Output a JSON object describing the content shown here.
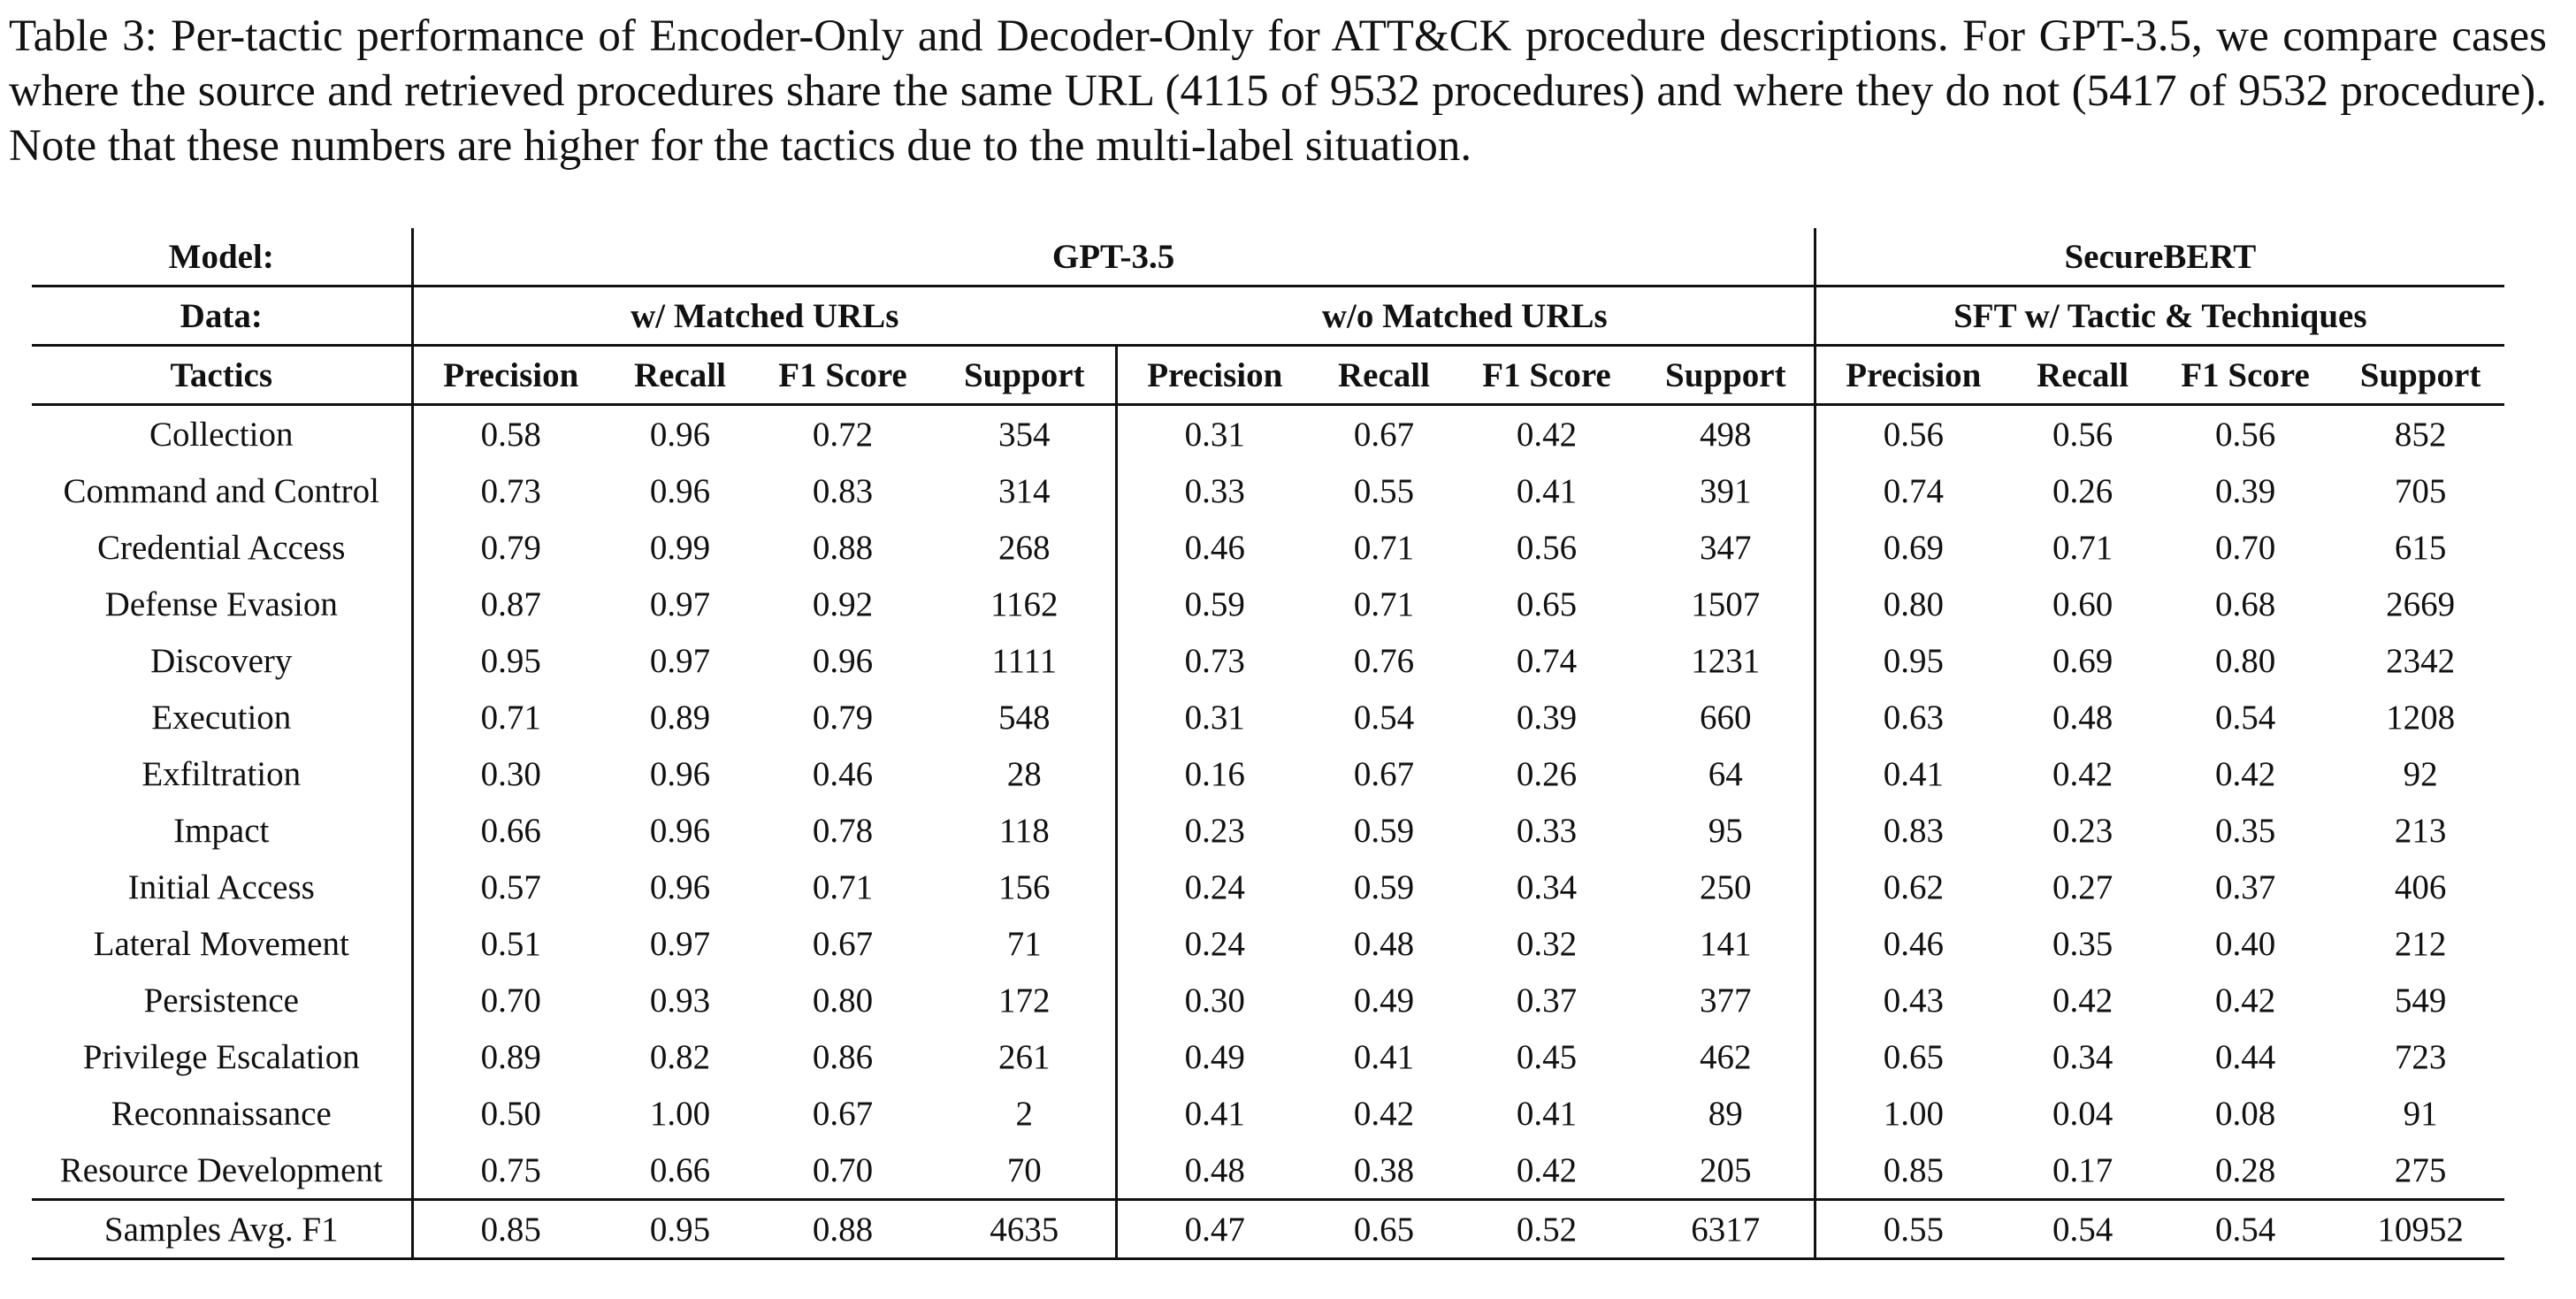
{
  "caption": "Table 3: Per-tactic performance of Encoder-Only and Decoder-Only for ATT&CK procedure descriptions. For GPT-3.5, we compare cases where the source and retrieved procedures share the same URL (4115 of 9532 procedures) and where they do not (5417 of 9532 procedure). Note that these numbers are higher for the tactics due to the multi-label situation.",
  "header": {
    "model_label": "Model:",
    "data_label": "Data:",
    "tactics_label": "Tactics",
    "models": [
      "GPT-3.5",
      "SecureBERT"
    ],
    "data_groups": [
      "w/ Matched URLs",
      "w/o Matched URLs",
      "SFT w/ Tactic & Techniques"
    ],
    "metrics": [
      "Precision",
      "Recall",
      "F1 Score",
      "Support",
      "Precision",
      "Recall",
      "F1 Score",
      "Support",
      "Precision",
      "Recall",
      "F1 Score",
      "Support"
    ]
  },
  "rows": [
    {
      "tactic": "Collection",
      "values": [
        "0.58",
        "0.96",
        "0.72",
        "354",
        "0.31",
        "0.67",
        "0.42",
        "498",
        "0.56",
        "0.56",
        "0.56",
        "852"
      ]
    },
    {
      "tactic": "Command and Control",
      "values": [
        "0.73",
        "0.96",
        "0.83",
        "314",
        "0.33",
        "0.55",
        "0.41",
        "391",
        "0.74",
        "0.26",
        "0.39",
        "705"
      ]
    },
    {
      "tactic": "Credential Access",
      "values": [
        "0.79",
        "0.99",
        "0.88",
        "268",
        "0.46",
        "0.71",
        "0.56",
        "347",
        "0.69",
        "0.71",
        "0.70",
        "615"
      ]
    },
    {
      "tactic": "Defense Evasion",
      "values": [
        "0.87",
        "0.97",
        "0.92",
        "1162",
        "0.59",
        "0.71",
        "0.65",
        "1507",
        "0.80",
        "0.60",
        "0.68",
        "2669"
      ]
    },
    {
      "tactic": "Discovery",
      "values": [
        "0.95",
        "0.97",
        "0.96",
        "1111",
        "0.73",
        "0.76",
        "0.74",
        "1231",
        "0.95",
        "0.69",
        "0.80",
        "2342"
      ]
    },
    {
      "tactic": "Execution",
      "values": [
        "0.71",
        "0.89",
        "0.79",
        "548",
        "0.31",
        "0.54",
        "0.39",
        "660",
        "0.63",
        "0.48",
        "0.54",
        "1208"
      ]
    },
    {
      "tactic": "Exfiltration",
      "values": [
        "0.30",
        "0.96",
        "0.46",
        "28",
        "0.16",
        "0.67",
        "0.26",
        "64",
        "0.41",
        "0.42",
        "0.42",
        "92"
      ]
    },
    {
      "tactic": "Impact",
      "values": [
        "0.66",
        "0.96",
        "0.78",
        "118",
        "0.23",
        "0.59",
        "0.33",
        "95",
        "0.83",
        "0.23",
        "0.35",
        "213"
      ]
    },
    {
      "tactic": "Initial Access",
      "values": [
        "0.57",
        "0.96",
        "0.71",
        "156",
        "0.24",
        "0.59",
        "0.34",
        "250",
        "0.62",
        "0.27",
        "0.37",
        "406"
      ]
    },
    {
      "tactic": "Lateral Movement",
      "values": [
        "0.51",
        "0.97",
        "0.67",
        "71",
        "0.24",
        "0.48",
        "0.32",
        "141",
        "0.46",
        "0.35",
        "0.40",
        "212"
      ]
    },
    {
      "tactic": "Persistence",
      "values": [
        "0.70",
        "0.93",
        "0.80",
        "172",
        "0.30",
        "0.49",
        "0.37",
        "377",
        "0.43",
        "0.42",
        "0.42",
        "549"
      ]
    },
    {
      "tactic": "Privilege Escalation",
      "values": [
        "0.89",
        "0.82",
        "0.86",
        "261",
        "0.49",
        "0.41",
        "0.45",
        "462",
        "0.65",
        "0.34",
        "0.44",
        "723"
      ]
    },
    {
      "tactic": "Reconnaissance",
      "values": [
        "0.50",
        "1.00",
        "0.67",
        "2",
        "0.41",
        "0.42",
        "0.41",
        "89",
        "1.00",
        "0.04",
        "0.08",
        "91"
      ]
    },
    {
      "tactic": "Resource Development",
      "values": [
        "0.75",
        "0.66",
        "0.70",
        "70",
        "0.48",
        "0.38",
        "0.42",
        "205",
        "0.85",
        "0.17",
        "0.28",
        "275"
      ]
    }
  ],
  "summary": {
    "tactic": "Samples Avg. F1",
    "values": [
      "0.85",
      "0.95",
      "0.88",
      "4635",
      "0.47",
      "0.65",
      "0.52",
      "6317",
      "0.55",
      "0.54",
      "0.54",
      "10952"
    ]
  }
}
